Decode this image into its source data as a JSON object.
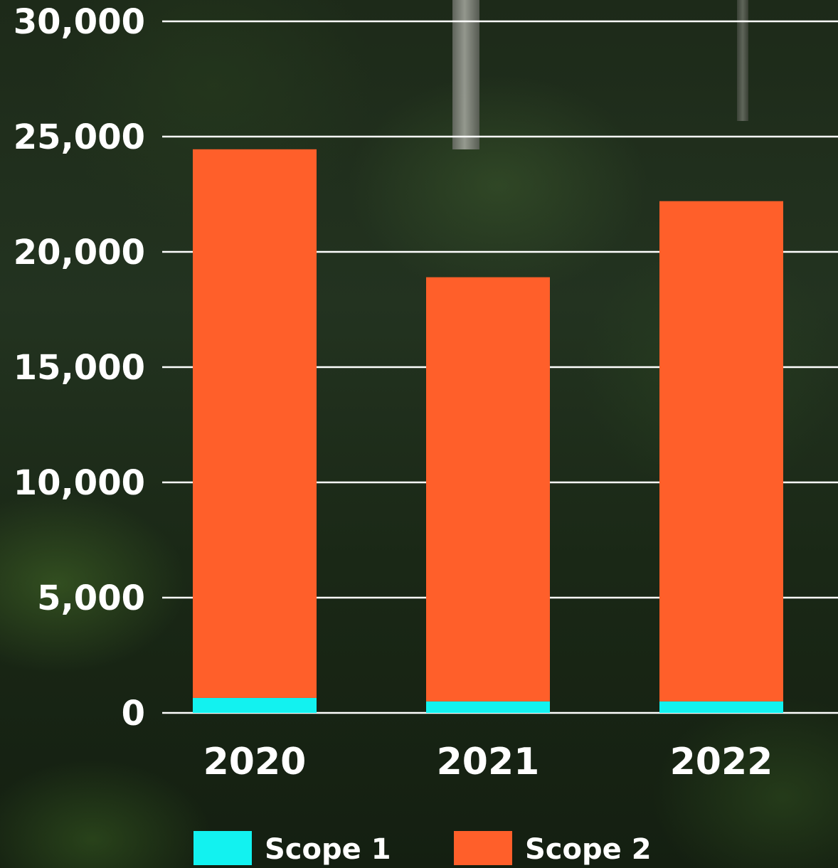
{
  "chart_data": {
    "type": "bar",
    "stacked": true,
    "categories": [
      "2020",
      "2021",
      "2022"
    ],
    "series": [
      {
        "name": "Scope 1",
        "color": "#12f2f0",
        "values": [
          650,
          500,
          500
        ]
      },
      {
        "name": "Scope 2",
        "color": "#ff5f2a",
        "values": [
          23800,
          18400,
          21700
        ]
      }
    ],
    "y_ticks": [
      "0",
      "5,000",
      "10,000",
      "15,000",
      "20,000",
      "25,000",
      "30,000"
    ],
    "ylim": [
      0,
      30000
    ],
    "grid": true,
    "gridline_color": "#ffffff",
    "legend_position": "bottom"
  }
}
